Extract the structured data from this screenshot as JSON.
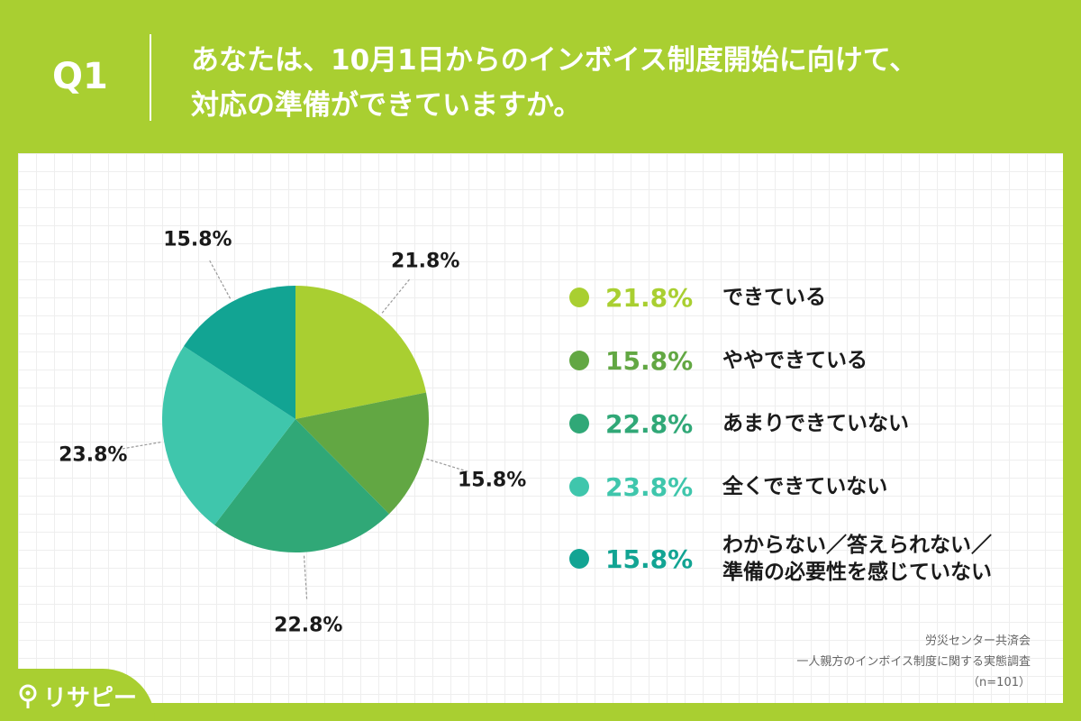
{
  "question": {
    "number": "Q1",
    "line1": "あなたは、10月1日からのインボイス制度開始に向けて、",
    "line2": "対応の準備ができていますか。"
  },
  "chart_data": {
    "type": "pie",
    "title": "",
    "slices": [
      {
        "label": "できている",
        "value": 21.8,
        "display": "21.8%",
        "color": "#a9cf31"
      },
      {
        "label": "ややできている",
        "value": 15.8,
        "display": "15.8%",
        "color": "#62a743"
      },
      {
        "label": "あまりできていない",
        "value": 22.8,
        "display": "22.8%",
        "color": "#30a877"
      },
      {
        "label": "全くできていない",
        "value": 23.8,
        "display": "23.8%",
        "color": "#3fc6ac"
      },
      {
        "label_line1": "わからない／答えられない／",
        "label_line2": "準備の必要性を感じていない",
        "value": 15.8,
        "display": "15.8%",
        "color": "#12a493"
      }
    ],
    "start": "12 o'clock, clockwise",
    "legend_position": "right"
  },
  "source": {
    "line1": "労災センター共済会",
    "line2": "一人親方のインボイス制度に関する実態調査",
    "line3": "（n=101）"
  },
  "brand": {
    "name": "リサピー"
  }
}
